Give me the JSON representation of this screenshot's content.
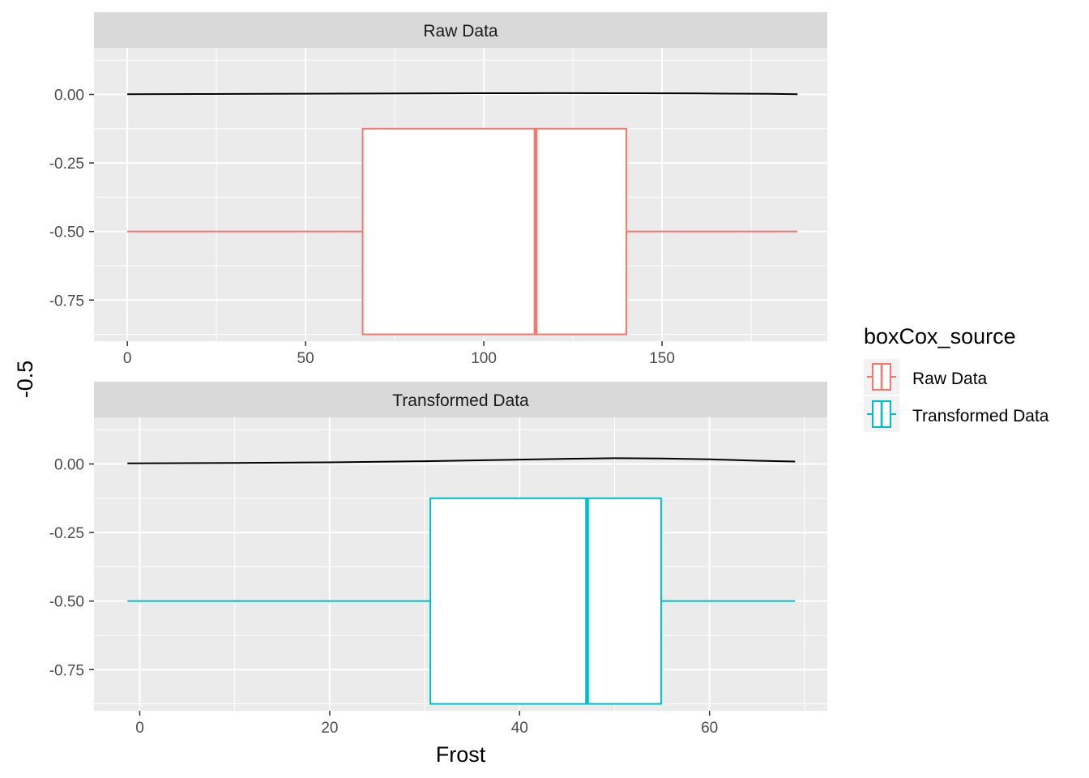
{
  "chart_data": {
    "type": "boxplot",
    "xlabel": "Frost",
    "ylabel": "-0.5",
    "legend": {
      "title": "boxCox_source",
      "position": "right",
      "entries": [
        {
          "label": "Raw Data",
          "color": "#F8766D"
        },
        {
          "label": "Transformed Data",
          "color": "#00BFC4"
        }
      ]
    },
    "colors": {
      "panel_bg": "#EBEBEB",
      "strip_bg": "#D9D9D9",
      "grid": "#FFFFFF",
      "density": "#000000",
      "tick": "#333333"
    },
    "panels": [
      {
        "strip": "Raw Data",
        "color": "#F8766D",
        "xlim": [
          -9.35,
          196.35
        ],
        "ylim": [
          -0.9,
          0.17
        ],
        "x_ticks": [
          0,
          50,
          100,
          150
        ],
        "x_tick_labels": [
          "0",
          "50",
          "100",
          "150"
        ],
        "x_minor": [
          25,
          75,
          125,
          175
        ],
        "y_ticks": [
          0,
          -0.25,
          -0.5,
          -0.75
        ],
        "y_tick_labels": [
          "0.00",
          "-0.25",
          "-0.50",
          "-0.75"
        ],
        "box": {
          "whisker_low": 0,
          "q1": 66,
          "median": 114.5,
          "q3": 140,
          "whisker_high": 188,
          "y_center": -0.5,
          "y_bottom": -0.875,
          "y_top": -0.125
        },
        "density_x": [
          0,
          20,
          40,
          60,
          80,
          100,
          120,
          140,
          160,
          180,
          188
        ],
        "density_y": [
          0.001,
          0.0015,
          0.0022,
          0.003,
          0.0038,
          0.0044,
          0.0047,
          0.0045,
          0.0035,
          0.002,
          0.001
        ]
      },
      {
        "strip": "Transformed Data",
        "color": "#00BFC4",
        "xlim": [
          -4.82,
          72.4
        ],
        "ylim": [
          -0.9,
          0.17
        ],
        "x_ticks": [
          0,
          20,
          40,
          60
        ],
        "x_tick_labels": [
          "0",
          "20",
          "40",
          "60"
        ],
        "x_minor": [
          10,
          30,
          50,
          70
        ],
        "y_ticks": [
          0,
          -0.25,
          -0.5,
          -0.75
        ],
        "y_tick_labels": [
          "0.00",
          "-0.25",
          "-0.50",
          "-0.75"
        ],
        "box": {
          "whisker_low": -1.3,
          "q1": 30.6,
          "median": 47.1,
          "q3": 54.9,
          "whisker_high": 69,
          "y_center": -0.5,
          "y_bottom": -0.875,
          "y_top": -0.125
        },
        "density_x": [
          -1.3,
          10,
          20,
          30,
          40,
          45,
          50,
          55,
          60,
          65,
          69
        ],
        "density_y": [
          0.002,
          0.004,
          0.006,
          0.01,
          0.016,
          0.019,
          0.021,
          0.02,
          0.017,
          0.012,
          0.009
        ]
      }
    ]
  }
}
